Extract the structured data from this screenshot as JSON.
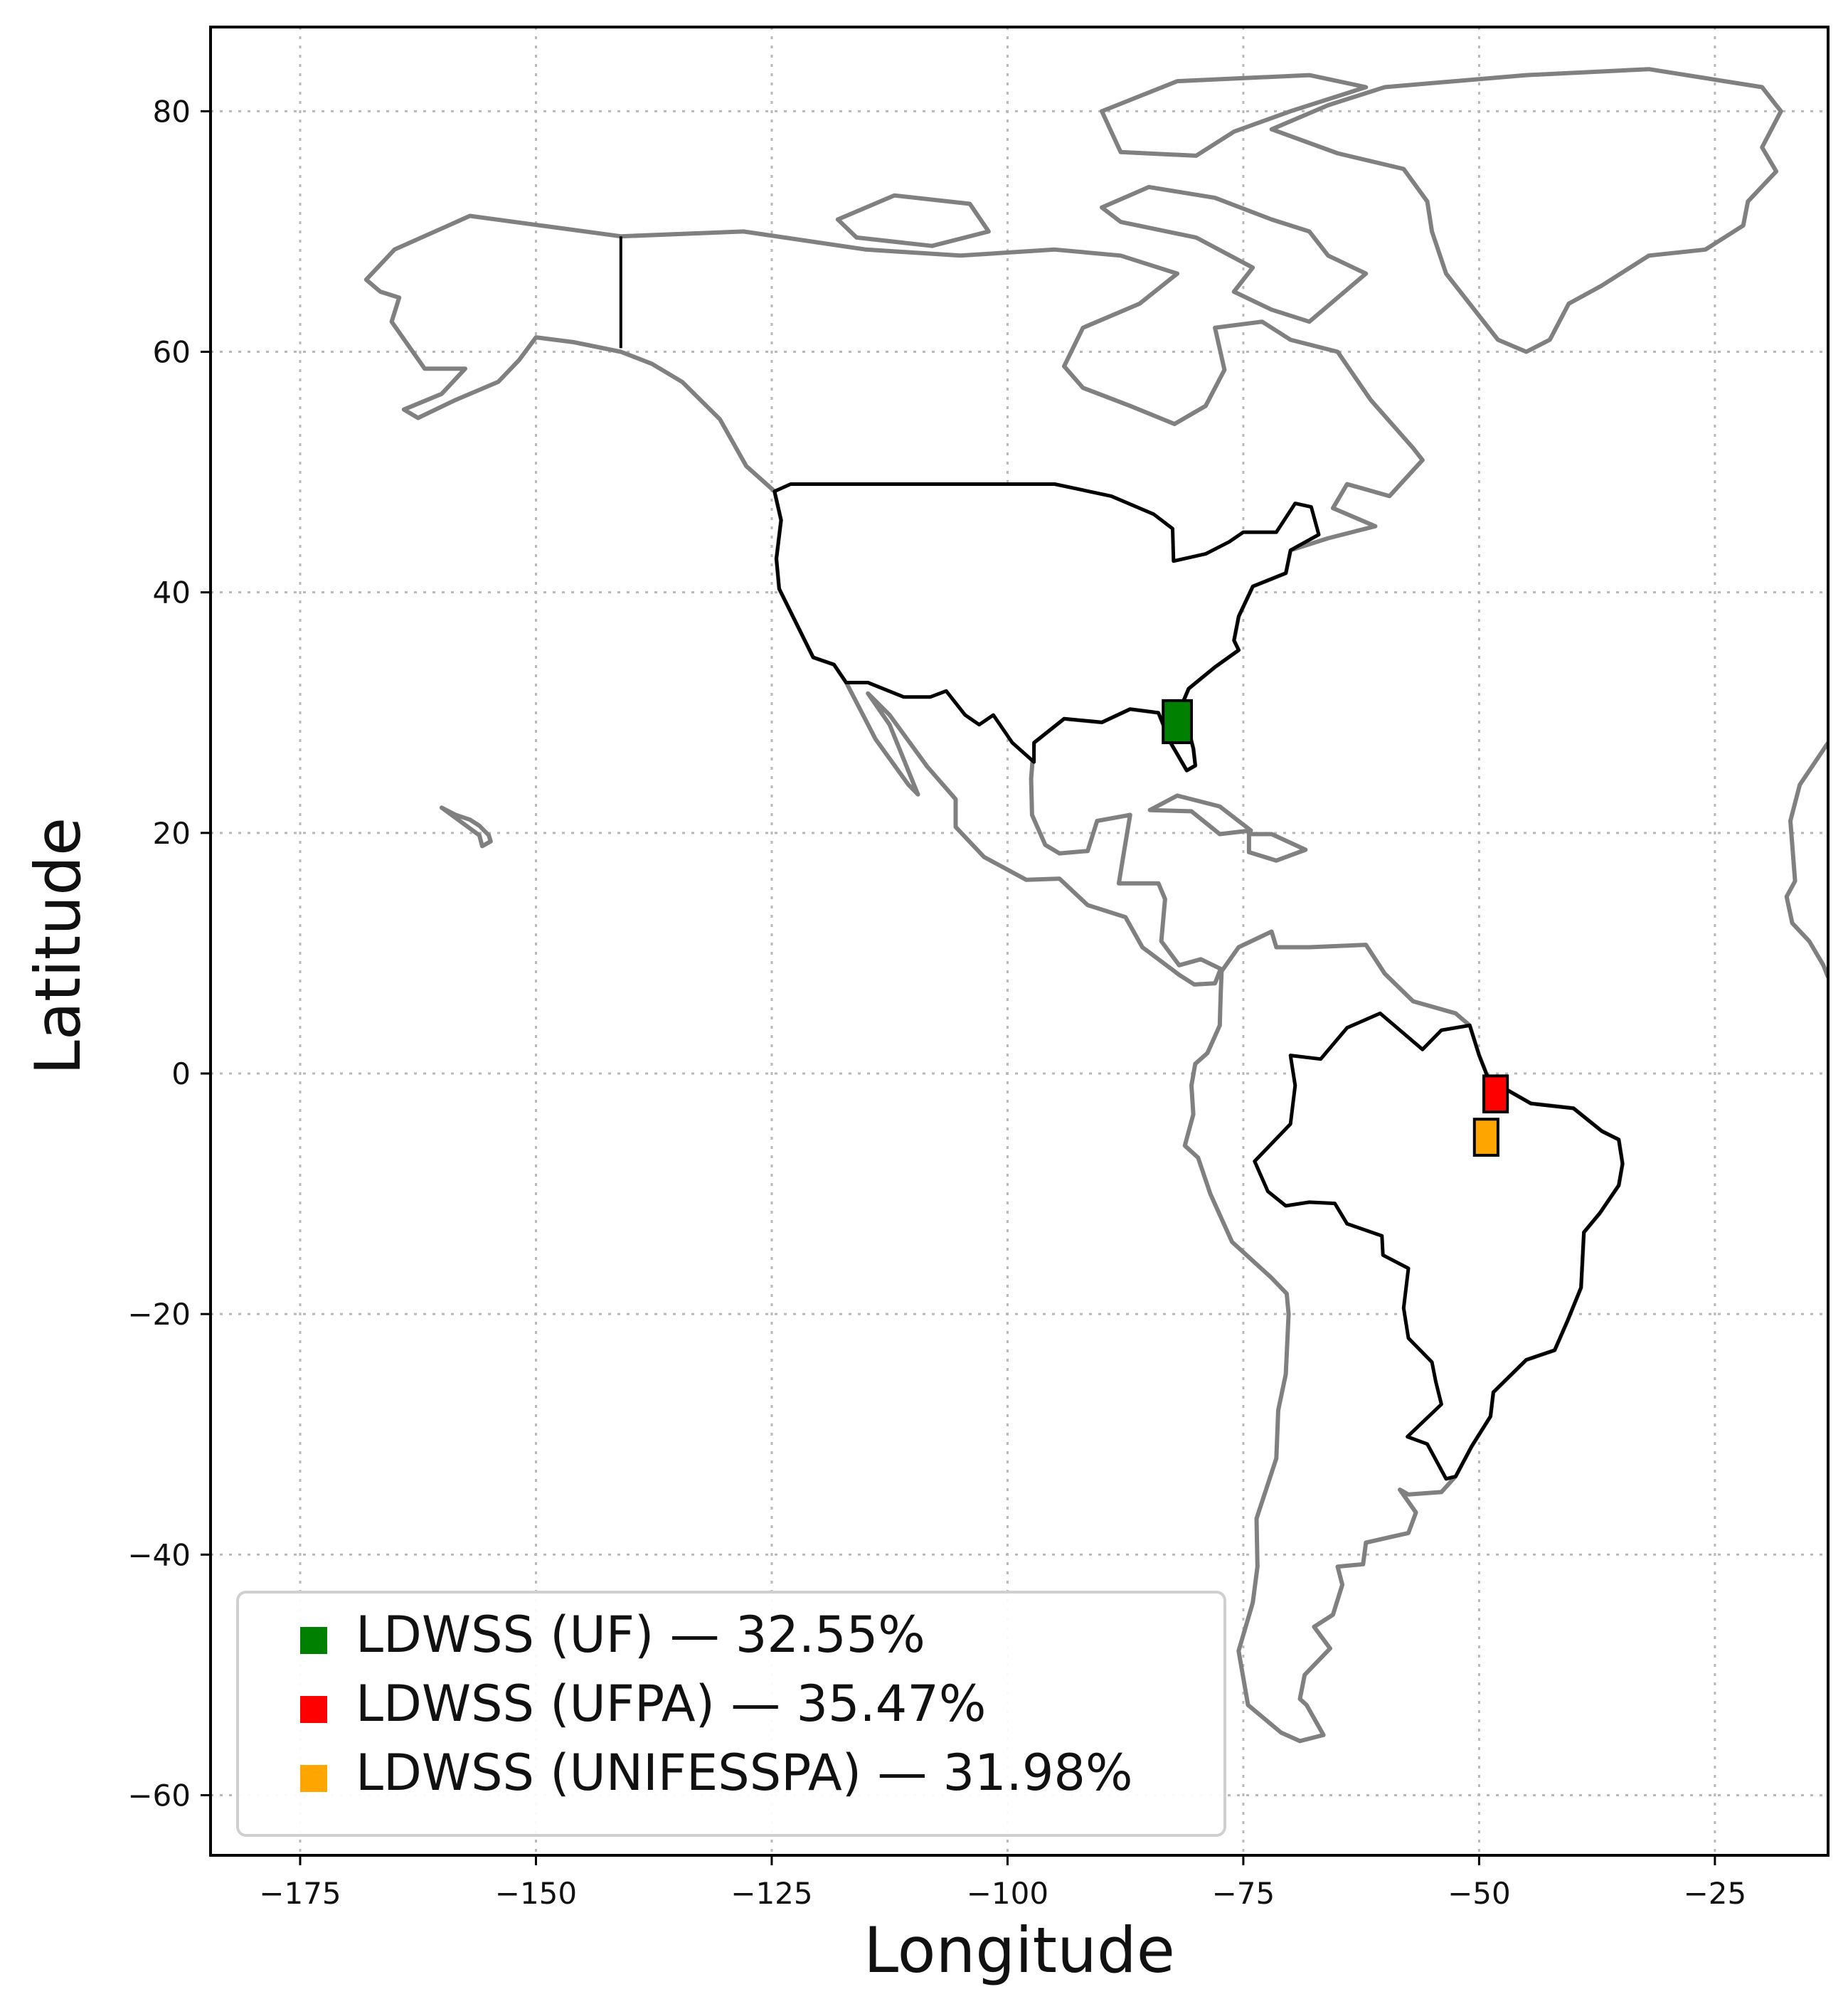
{
  "axes": {
    "xlabel": "Longitude",
    "ylabel": "Latitude",
    "xlim": [
      -184.5,
      -13
    ],
    "ylim": [
      -65,
      87
    ],
    "xticks": [
      -175,
      -150,
      -125,
      -100,
      -75,
      -50,
      -25
    ],
    "yticks": [
      80,
      60,
      40,
      20,
      0,
      -20,
      -40,
      -60
    ],
    "xtick_labels": [
      "−175",
      "−150",
      "−125",
      "−100",
      "−75",
      "−50",
      "−25"
    ],
    "ytick_labels": [
      "80",
      "60",
      "40",
      "20",
      "0",
      "−20",
      "−40",
      "−60"
    ],
    "grid": true
  },
  "legend": {
    "placement": "lower-left",
    "items": [
      {
        "label": "LDWSS (UF) — 32.55%",
        "color": "#008000"
      },
      {
        "label": "LDWSS (UFPA) — 35.47%",
        "color": "#ff0000"
      },
      {
        "label": "LDWSS (UNIFESSPA) — 31.98%",
        "color": "#ffa500"
      }
    ]
  },
  "map_data": {
    "highlighted_regions": [
      {
        "site": "UF",
        "color": "#008000",
        "lon": [
          -83.5,
          -80.5
        ],
        "lat": [
          27.5,
          31
        ]
      },
      {
        "site": "UFPA",
        "color": "#ff0000",
        "lon": [
          -49.5,
          -47
        ],
        "lat": [
          -3.2,
          -0.2
        ]
      },
      {
        "site": "UNIFESSPA",
        "color": "#ffa500",
        "lon": [
          -50.5,
          -48
        ],
        "lat": [
          -6.8,
          -3.8
        ]
      }
    ],
    "outlined_countries": [
      "United States",
      "Brazil"
    ]
  }
}
